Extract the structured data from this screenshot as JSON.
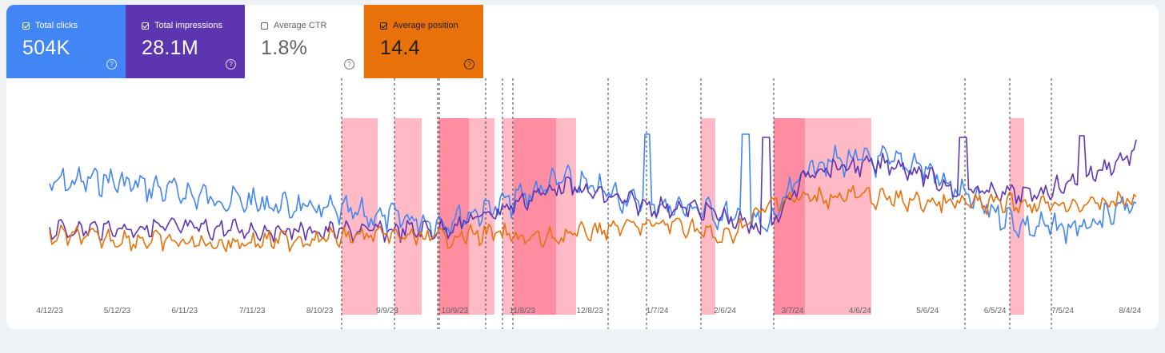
{
  "metrics": [
    {
      "label": "Total clicks",
      "value": "504K",
      "selected": true,
      "color": "#4285f4",
      "help_icon": "help-circle-icon"
    },
    {
      "label": "Total impressions",
      "value": "28.1M",
      "selected": true,
      "color": "#5e35b1",
      "help_icon": "help-circle-icon"
    },
    {
      "label": "Average CTR",
      "value": "1.8%",
      "selected": false,
      "color": "#ffffff",
      "help_icon": "help-circle-icon"
    },
    {
      "label": "Average position",
      "value": "14.4",
      "selected": true,
      "color": "#e8710a",
      "help_icon": "help-circle-icon"
    }
  ],
  "chart_data": {
    "type": "line",
    "x_tick_labels": [
      "4/12/23",
      "5/12/23",
      "6/11/23",
      "7/11/23",
      "8/10/23",
      "9/9/23",
      "10/9/23",
      "11/8/23",
      "12/8/23",
      "1/7/24",
      "2/6/24",
      "3/7/24",
      "4/6/24",
      "5/6/24",
      "6/5/24",
      "7/5/24",
      "8/4/24"
    ],
    "series": [
      {
        "name": "Total clicks",
        "color": "#4285f4"
      },
      {
        "name": "Total impressions",
        "color": "#5e35b1"
      },
      {
        "name": "Average position",
        "color": "#e8710a"
      }
    ],
    "highlight_bands_color": "#ff8fa3",
    "annotation_lines": "dashed vertical markers"
  }
}
